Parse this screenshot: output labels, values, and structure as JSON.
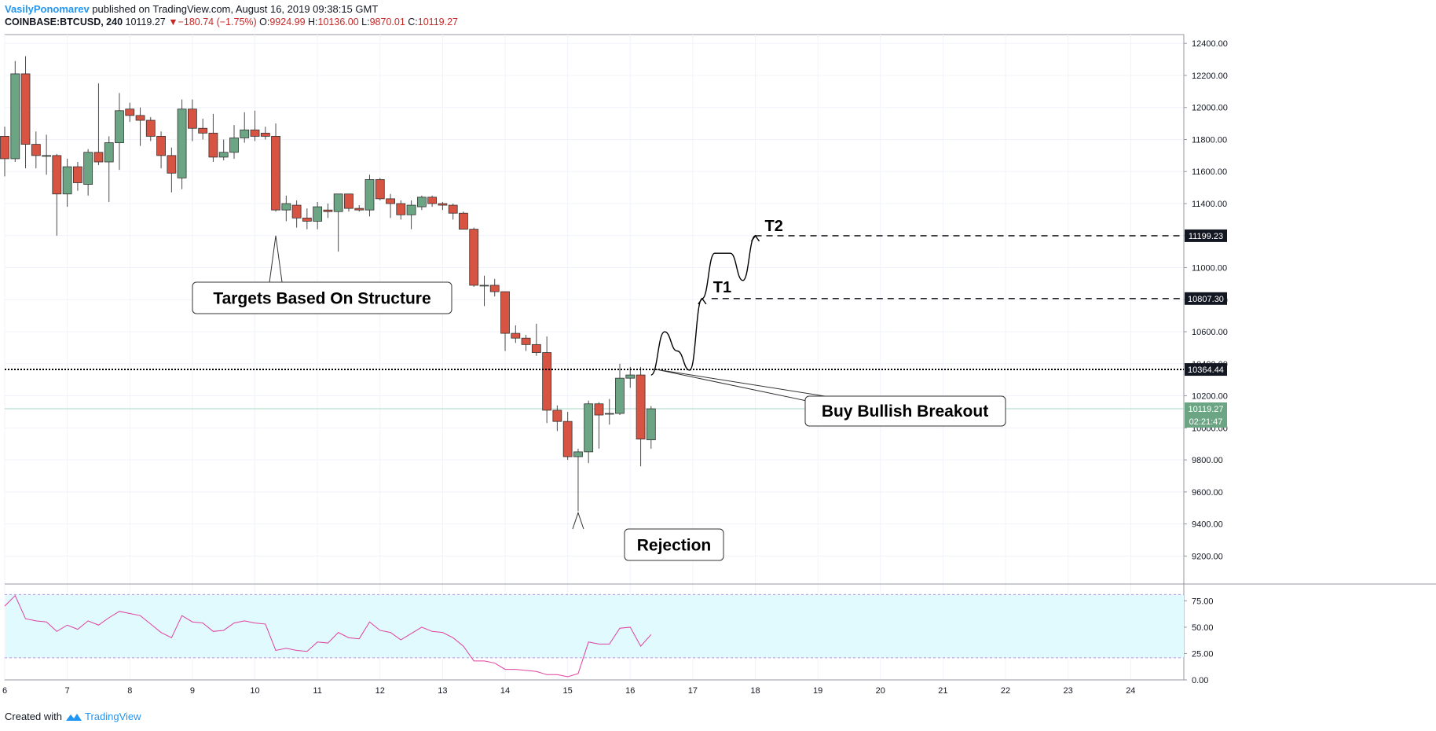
{
  "header": {
    "author": "VasilyPonomarev",
    "published": " published on TradingView.com, August 16, 2019 09:38:15 GMT",
    "symbol": "COINBASE:BTCUSD, 240",
    "last": "10119.27",
    "arrow": "▼",
    "change": "−180.74 (−1.75%)",
    "o_label": "O:",
    "o_val": "9924.99",
    "h_label": "H:",
    "h_val": "10136.00",
    "l_label": "L:",
    "l_val": "9870.01",
    "c_label": "C:",
    "c_val": "10119.27"
  },
  "footer": {
    "created_with": "Created with",
    "brand": "TradingView"
  },
  "colors": {
    "up": "#6ba583",
    "down": "#d75442",
    "rsi_line": "#e040a0",
    "rsi_band": "#e0fafd",
    "accent": "#2196f3"
  },
  "chart_data": {
    "type": "candlestick",
    "x_axis": {
      "ticks": [
        {
          "day": 6,
          "label": "6"
        },
        {
          "day": 7,
          "label": "7"
        },
        {
          "day": 8,
          "label": "8"
        },
        {
          "day": 9,
          "label": "9"
        },
        {
          "day": 10,
          "label": "10"
        },
        {
          "day": 11,
          "label": "11"
        },
        {
          "day": 12,
          "label": "12"
        },
        {
          "day": 13,
          "label": "13"
        },
        {
          "day": 14,
          "label": "14"
        },
        {
          "day": 15,
          "label": "15"
        },
        {
          "day": 16,
          "label": "16"
        },
        {
          "day": 17,
          "label": "17"
        },
        {
          "day": 18,
          "label": "18"
        },
        {
          "day": 19,
          "label": "19"
        },
        {
          "day": 20,
          "label": "20"
        },
        {
          "day": 21,
          "label": "21"
        },
        {
          "day": 22,
          "label": "22"
        },
        {
          "day": 23,
          "label": "23"
        },
        {
          "day": 24,
          "label": "24"
        }
      ],
      "range": [
        6,
        24.85
      ]
    },
    "y_axis": {
      "range": [
        9030,
        12455
      ],
      "ticks": [
        {
          "v": 9200,
          "label": "9200.00"
        },
        {
          "v": 9400,
          "label": "9400.00"
        },
        {
          "v": 9600,
          "label": "9600.00"
        },
        {
          "v": 9800,
          "label": "9800.00"
        },
        {
          "v": 10000,
          "label": "10000.00"
        },
        {
          "v": 10200,
          "label": "10200.00"
        },
        {
          "v": 10400,
          "label": "10400.00"
        },
        {
          "v": 10600,
          "label": "10600.00"
        },
        {
          "v": 10800,
          "label": "10800.00"
        },
        {
          "v": 11000,
          "label": "11000.00"
        },
        {
          "v": 11200,
          "label": "11200.00"
        },
        {
          "v": 11400,
          "label": "11400.00"
        },
        {
          "v": 11600,
          "label": "11600.00"
        },
        {
          "v": 11800,
          "label": "11800.00"
        },
        {
          "v": 12000,
          "label": "12000.00"
        },
        {
          "v": 12200,
          "label": "12200.00"
        },
        {
          "v": 12400,
          "label": "12400.00"
        }
      ]
    },
    "candles": [
      {
        "t": 6.0,
        "o": 11820,
        "h": 11880,
        "l": 11570,
        "c": 11680
      },
      {
        "t": 6.167,
        "o": 11680,
        "h": 12290,
        "l": 11660,
        "c": 12210
      },
      {
        "t": 6.333,
        "o": 12210,
        "h": 12320,
        "l": 11620,
        "c": 11770
      },
      {
        "t": 6.5,
        "o": 11770,
        "h": 11850,
        "l": 11620,
        "c": 11700
      },
      {
        "t": 6.667,
        "o": 11700,
        "h": 11830,
        "l": 11580,
        "c": 11700
      },
      {
        "t": 6.833,
        "o": 11700,
        "h": 11710,
        "l": 11200,
        "c": 11460
      },
      {
        "t": 7.0,
        "o": 11460,
        "h": 11680,
        "l": 11380,
        "c": 11630
      },
      {
        "t": 7.167,
        "o": 11630,
        "h": 11660,
        "l": 11480,
        "c": 11530
      },
      {
        "t": 7.333,
        "o": 11520,
        "h": 11740,
        "l": 11450,
        "c": 11720
      },
      {
        "t": 7.5,
        "o": 11720,
        "h": 12150,
        "l": 11640,
        "c": 11660
      },
      {
        "t": 7.667,
        "o": 11660,
        "h": 11820,
        "l": 11410,
        "c": 11780
      },
      {
        "t": 7.833,
        "o": 11780,
        "h": 12090,
        "l": 11610,
        "c": 11980
      },
      {
        "t": 8.0,
        "o": 11990,
        "h": 12030,
        "l": 11910,
        "c": 11950
      },
      {
        "t": 8.167,
        "o": 11950,
        "h": 12000,
        "l": 11760,
        "c": 11920
      },
      {
        "t": 8.333,
        "o": 11920,
        "h": 11940,
        "l": 11790,
        "c": 11820
      },
      {
        "t": 8.5,
        "o": 11820,
        "h": 11850,
        "l": 11620,
        "c": 11700
      },
      {
        "t": 8.667,
        "o": 11700,
        "h": 11750,
        "l": 11470,
        "c": 11590
      },
      {
        "t": 8.833,
        "o": 11560,
        "h": 12050,
        "l": 11490,
        "c": 11990
      },
      {
        "t": 9.0,
        "o": 11990,
        "h": 12050,
        "l": 11790,
        "c": 11870
      },
      {
        "t": 9.167,
        "o": 11870,
        "h": 11930,
        "l": 11800,
        "c": 11840
      },
      {
        "t": 9.333,
        "o": 11840,
        "h": 11960,
        "l": 11660,
        "c": 11690
      },
      {
        "t": 9.5,
        "o": 11690,
        "h": 11800,
        "l": 11670,
        "c": 11720
      },
      {
        "t": 9.667,
        "o": 11720,
        "h": 11890,
        "l": 11680,
        "c": 11810
      },
      {
        "t": 9.833,
        "o": 11810,
        "h": 11970,
        "l": 11780,
        "c": 11860
      },
      {
        "t": 10.0,
        "o": 11860,
        "h": 11980,
        "l": 11790,
        "c": 11820
      },
      {
        "t": 10.167,
        "o": 11840,
        "h": 11880,
        "l": 11800,
        "c": 11820
      },
      {
        "t": 10.333,
        "o": 11820,
        "h": 11900,
        "l": 11350,
        "c": 11360
      },
      {
        "t": 10.5,
        "o": 11360,
        "h": 11450,
        "l": 11290,
        "c": 11400
      },
      {
        "t": 10.667,
        "o": 11390,
        "h": 11420,
        "l": 11250,
        "c": 11310
      },
      {
        "t": 10.833,
        "o": 11310,
        "h": 11370,
        "l": 11240,
        "c": 11290
      },
      {
        "t": 11.0,
        "o": 11290,
        "h": 11410,
        "l": 11240,
        "c": 11380
      },
      {
        "t": 11.167,
        "o": 11360,
        "h": 11400,
        "l": 11310,
        "c": 11350
      },
      {
        "t": 11.333,
        "o": 11350,
        "h": 11460,
        "l": 11100,
        "c": 11460
      },
      {
        "t": 11.5,
        "o": 11460,
        "h": 11460,
        "l": 11350,
        "c": 11370
      },
      {
        "t": 11.667,
        "o": 11370,
        "h": 11390,
        "l": 11350,
        "c": 11360
      },
      {
        "t": 11.833,
        "o": 11360,
        "h": 11580,
        "l": 11320,
        "c": 11550
      },
      {
        "t": 12.0,
        "o": 11550,
        "h": 11560,
        "l": 11420,
        "c": 11430
      },
      {
        "t": 12.167,
        "o": 11430,
        "h": 11460,
        "l": 11310,
        "c": 11400
      },
      {
        "t": 12.333,
        "o": 11400,
        "h": 11420,
        "l": 11300,
        "c": 11330
      },
      {
        "t": 12.5,
        "o": 11330,
        "h": 11420,
        "l": 11240,
        "c": 11390
      },
      {
        "t": 12.667,
        "o": 11380,
        "h": 11450,
        "l": 11360,
        "c": 11440
      },
      {
        "t": 12.833,
        "o": 11440,
        "h": 11450,
        "l": 11380,
        "c": 11400
      },
      {
        "t": 13.0,
        "o": 11400,
        "h": 11410,
        "l": 11360,
        "c": 11390
      },
      {
        "t": 13.167,
        "o": 11390,
        "h": 11400,
        "l": 11300,
        "c": 11340
      },
      {
        "t": 13.333,
        "o": 11340,
        "h": 11350,
        "l": 11240,
        "c": 11240
      },
      {
        "t": 13.5,
        "o": 11240,
        "h": 11250,
        "l": 10880,
        "c": 10890
      },
      {
        "t": 13.667,
        "o": 10890,
        "h": 10950,
        "l": 10760,
        "c": 10890
      },
      {
        "t": 13.833,
        "o": 10890,
        "h": 10930,
        "l": 10820,
        "c": 10850
      },
      {
        "t": 14.0,
        "o": 10850,
        "h": 10850,
        "l": 10480,
        "c": 10590
      },
      {
        "t": 14.167,
        "o": 10590,
        "h": 10640,
        "l": 10530,
        "c": 10560
      },
      {
        "t": 14.333,
        "o": 10560,
        "h": 10580,
        "l": 10480,
        "c": 10520
      },
      {
        "t": 14.5,
        "o": 10520,
        "h": 10650,
        "l": 10450,
        "c": 10470
      },
      {
        "t": 14.667,
        "o": 10470,
        "h": 10570,
        "l": 10030,
        "c": 10110
      },
      {
        "t": 14.833,
        "o": 10110,
        "h": 10140,
        "l": 9980,
        "c": 10040
      },
      {
        "t": 15.0,
        "o": 10040,
        "h": 10100,
        "l": 9800,
        "c": 9820
      },
      {
        "t": 15.167,
        "o": 9820,
        "h": 9870,
        "l": 9480,
        "c": 9850
      },
      {
        "t": 15.333,
        "o": 9850,
        "h": 10170,
        "l": 9780,
        "c": 10150
      },
      {
        "t": 15.5,
        "o": 10150,
        "h": 10160,
        "l": 9870,
        "c": 10080
      },
      {
        "t": 15.667,
        "o": 10090,
        "h": 10180,
        "l": 10020,
        "c": 10090
      },
      {
        "t": 15.833,
        "o": 10090,
        "h": 10400,
        "l": 10080,
        "c": 10310
      },
      {
        "t": 16.0,
        "o": 10310,
        "h": 10380,
        "l": 10250,
        "c": 10330
      },
      {
        "t": 16.167,
        "o": 10330,
        "h": 10380,
        "l": 9760,
        "c": 9930
      },
      {
        "t": 16.333,
        "o": 9925,
        "h": 10136,
        "l": 9870,
        "c": 10119
      }
    ],
    "horizontal_lines": [
      {
        "value": 10364.44,
        "label": "10364.44",
        "style": "dotted"
      },
      {
        "value": 10807.3,
        "label": "10807.30",
        "style": "dashed",
        "start": 17.3
      },
      {
        "value": 11199.23,
        "label": "11199.23",
        "style": "dashed",
        "start": 18.0
      }
    ],
    "current_price": {
      "value": 10119.27,
      "label": "10119.27",
      "countdown": "02:21:47"
    },
    "projection_path": [
      [
        16.333,
        10330
      ],
      [
        16.55,
        10600
      ],
      [
        16.75,
        10480
      ],
      [
        16.95,
        10360
      ],
      [
        17.15,
        10807
      ],
      [
        17.35,
        11090
      ],
      [
        17.6,
        11090
      ],
      [
        17.8,
        10920
      ],
      [
        18.0,
        11199
      ]
    ],
    "annotations": [
      {
        "text": "Targets Based On Structure",
        "anchor": [
          10.333,
          11200
        ]
      },
      {
        "text": "Rejection",
        "anchor": [
          15.167,
          9480
        ]
      },
      {
        "text": "Buy Bullish Breakout",
        "anchor": [
          16.55,
          10364
        ]
      },
      {
        "text": "T1",
        "anchor": [
          17.3,
          10807
        ]
      },
      {
        "text": "T2",
        "anchor": [
          18.15,
          11199
        ]
      }
    ],
    "rsi": {
      "y_range": [
        0,
        85
      ],
      "ticks": [
        {
          "v": 0,
          "label": "0.00"
        },
        {
          "v": 25,
          "label": "25.00"
        },
        {
          "v": 50,
          "label": "50.00"
        },
        {
          "v": 75,
          "label": "75.00"
        }
      ],
      "band": [
        21,
        81
      ],
      "values": [
        [
          6.0,
          70
        ],
        [
          6.167,
          80
        ],
        [
          6.333,
          58
        ],
        [
          6.5,
          56
        ],
        [
          6.667,
          55
        ],
        [
          6.833,
          46
        ],
        [
          7.0,
          52
        ],
        [
          7.167,
          48
        ],
        [
          7.333,
          56
        ],
        [
          7.5,
          52
        ],
        [
          7.667,
          59
        ],
        [
          7.833,
          65
        ],
        [
          8.0,
          63
        ],
        [
          8.167,
          61
        ],
        [
          8.333,
          53
        ],
        [
          8.5,
          45
        ],
        [
          8.667,
          40
        ],
        [
          8.833,
          61
        ],
        [
          9.0,
          55
        ],
        [
          9.167,
          54
        ],
        [
          9.333,
          46
        ],
        [
          9.5,
          47
        ],
        [
          9.667,
          54
        ],
        [
          9.833,
          56
        ],
        [
          10.0,
          54
        ],
        [
          10.167,
          53
        ],
        [
          10.333,
          28
        ],
        [
          10.5,
          30
        ],
        [
          10.667,
          28
        ],
        [
          10.833,
          27
        ],
        [
          11.0,
          36
        ],
        [
          11.167,
          35
        ],
        [
          11.333,
          45
        ],
        [
          11.5,
          40
        ],
        [
          11.667,
          39
        ],
        [
          11.833,
          55
        ],
        [
          12.0,
          47
        ],
        [
          12.167,
          45
        ],
        [
          12.333,
          38
        ],
        [
          12.5,
          44
        ],
        [
          12.667,
          50
        ],
        [
          12.833,
          46
        ],
        [
          13.0,
          45
        ],
        [
          13.167,
          40
        ],
        [
          13.333,
          32
        ],
        [
          13.5,
          18
        ],
        [
          13.667,
          18
        ],
        [
          13.833,
          16
        ],
        [
          14.0,
          10
        ],
        [
          14.167,
          10
        ],
        [
          14.333,
          9
        ],
        [
          14.5,
          8
        ],
        [
          14.667,
          5
        ],
        [
          14.833,
          5
        ],
        [
          15.0,
          3
        ],
        [
          15.167,
          6
        ],
        [
          15.333,
          36
        ],
        [
          15.5,
          34
        ],
        [
          15.667,
          34
        ],
        [
          15.833,
          49
        ],
        [
          16.0,
          50
        ],
        [
          16.167,
          32
        ],
        [
          16.333,
          43
        ]
      ]
    }
  }
}
